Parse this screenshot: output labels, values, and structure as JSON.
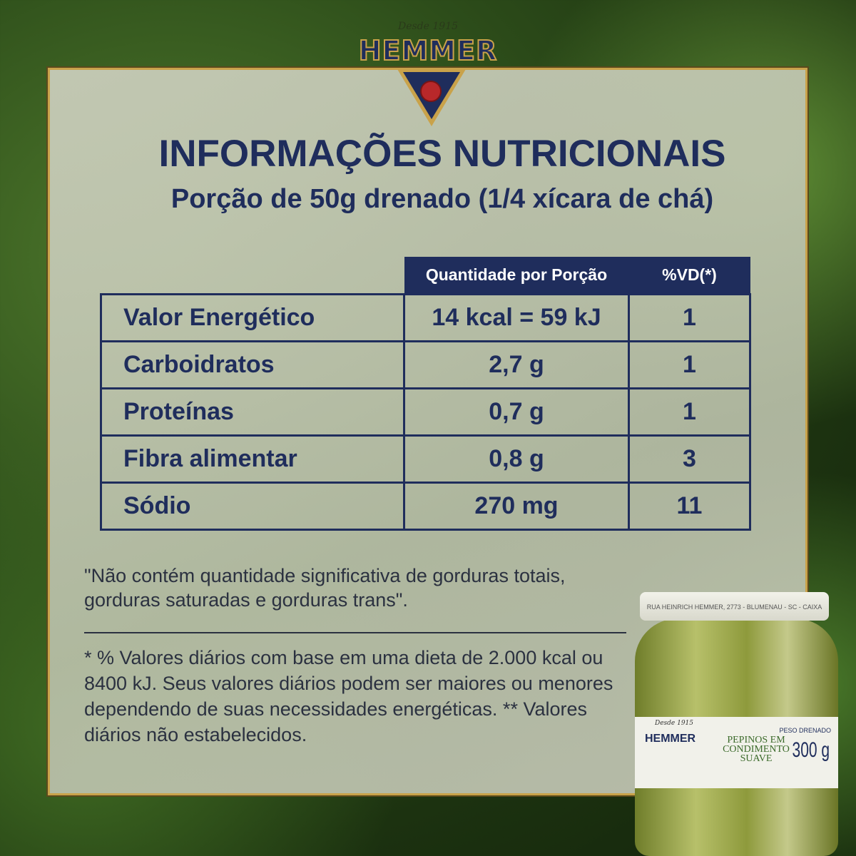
{
  "brand": {
    "since": "Desde 1915",
    "name": "HEMMER"
  },
  "title": "INFORMAÇÕES NUTRICIONAIS",
  "subtitle": "Porção de 50g drenado (1/4 xícara de chá)",
  "table": {
    "headers": [
      "Quantidade por Porção",
      "%VD(*)"
    ],
    "rows": [
      {
        "name": "Valor Energético",
        "qty": "14 kcal = 59 kJ",
        "vd": "1"
      },
      {
        "name": "Carboidratos",
        "qty": "2,7 g",
        "vd": "1"
      },
      {
        "name": "Proteínas",
        "qty": "0,7 g",
        "vd": "1"
      },
      {
        "name": "Fibra alimentar",
        "qty": "0,8 g",
        "vd": "3"
      },
      {
        "name": "Sódio",
        "qty": "270 mg",
        "vd": "11"
      }
    ]
  },
  "note1": "\"Não contém quantidade significativa de gorduras totais, gorduras saturadas e gorduras trans\".",
  "note2": "* % Valores diários com base em uma dieta de 2.000 kcal ou 8400 kJ. Seus valores diários podem ser maiores ou menores dependendo de suas necessidades energéticas. ** Valores diários não estabelecidos.",
  "jar": {
    "lid_text": "RUA HEINRICH HEMMER, 2773 - BLUMENAU - SC - CAIXA",
    "since": "Desde 1915",
    "brand": "HEMMER",
    "product": "PEPINOS EM CONDIMENTO SUAVE",
    "weight_label": "PESO DRENADO",
    "weight": "300 g"
  },
  "colors": {
    "navy": "#1f2d5c",
    "gold": "#c9a24a",
    "panel": "#c4c8b4"
  }
}
